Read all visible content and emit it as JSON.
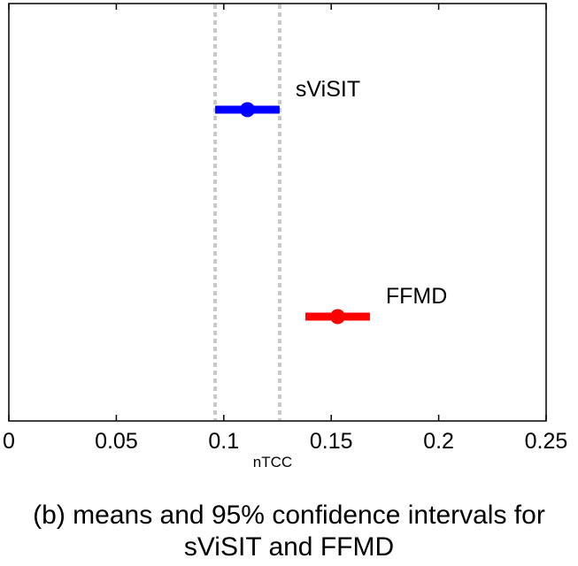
{
  "chart_data": {
    "type": "scatter",
    "subtype": "interval-plot",
    "xlabel": "nTCC",
    "xlim": [
      0,
      0.25
    ],
    "xticks": [
      0,
      0.05,
      0.1,
      0.15,
      0.2,
      0.25
    ],
    "xtick_labels": [
      "0",
      "0.05",
      "0.1",
      "0.15",
      "0.2",
      "0.25"
    ],
    "grid": false,
    "reference_lines": [
      {
        "x": 0.096,
        "style": "dotted",
        "color": "#c8c8c8"
      },
      {
        "x": 0.126,
        "style": "dotted",
        "color": "#c8c8c8"
      }
    ],
    "series": [
      {
        "name": "sViSIT",
        "mean": 0.111,
        "ci_low": 0.096,
        "ci_high": 0.126,
        "color": "#0000ff",
        "row": 1
      },
      {
        "name": "FFMD",
        "mean": 0.153,
        "ci_low": 0.138,
        "ci_high": 0.168,
        "color": "#ff0000",
        "row": 2
      }
    ]
  },
  "caption": {
    "line1": "(b) means and 95% confidence intervals for",
    "line2": "sViSIT and FFMD"
  }
}
